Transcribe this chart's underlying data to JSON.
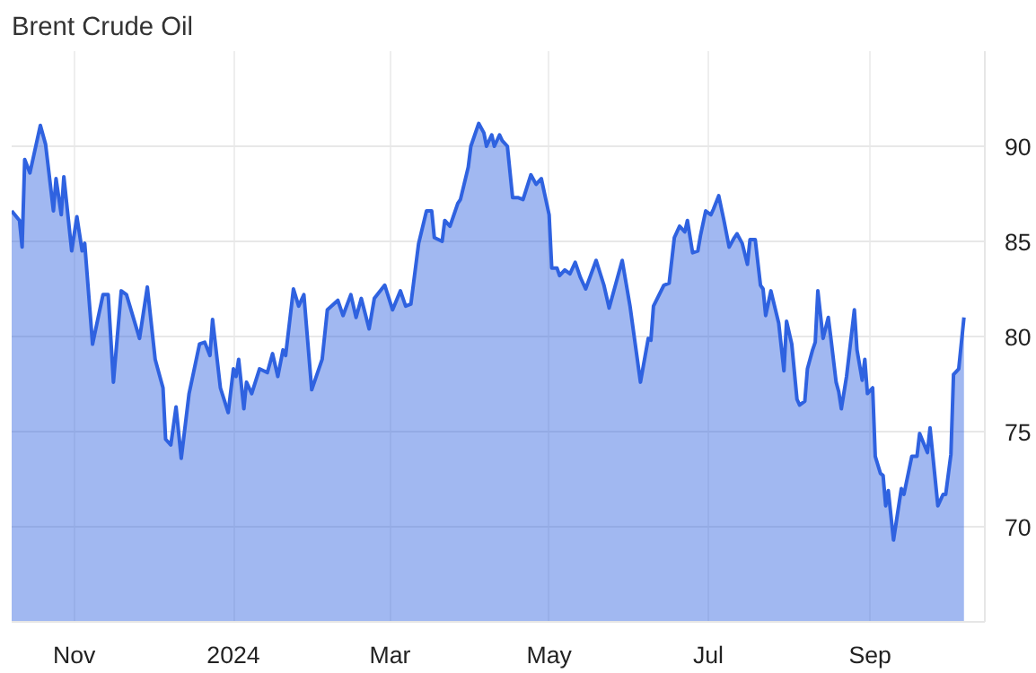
{
  "chart_data": {
    "type": "area",
    "title": "Brent Crude Oil",
    "x": [
      "2023-10-08",
      "2023-10-11",
      "2023-10-12",
      "2023-10-13",
      "2023-10-15",
      "2023-10-19",
      "2023-10-21",
      "2023-10-24",
      "2023-10-25",
      "2023-10-27",
      "2023-10-28",
      "2023-10-31",
      "2023-11-02",
      "2023-11-04",
      "2023-11-05",
      "2023-11-08",
      "2023-11-12",
      "2023-11-14",
      "2023-11-16",
      "2023-11-19",
      "2023-11-21",
      "2023-11-26",
      "2023-11-29",
      "2023-12-02",
      "2023-12-05",
      "2023-12-06",
      "2023-12-08",
      "2023-12-10",
      "2023-12-12",
      "2023-12-15",
      "2023-12-19",
      "2023-12-21",
      "2023-12-23",
      "2023-12-24",
      "2023-12-27",
      "2023-12-30",
      "2024-01-01",
      "2024-01-02",
      "2024-01-03",
      "2024-01-05",
      "2024-01-06",
      "2024-01-08",
      "2024-01-11",
      "2024-01-14",
      "2024-01-16",
      "2024-01-18",
      "2024-01-20",
      "2024-01-21",
      "2024-01-24",
      "2024-01-26",
      "2024-01-28",
      "2024-01-31",
      "2024-02-04",
      "2024-02-06",
      "2024-02-10",
      "2024-02-12",
      "2024-02-15",
      "2024-02-17",
      "2024-02-19",
      "2024-02-22",
      "2024-02-24",
      "2024-02-28",
      "2024-03-02",
      "2024-03-05",
      "2024-03-07",
      "2024-03-09",
      "2024-03-12",
      "2024-03-15",
      "2024-03-17",
      "2024-03-18",
      "2024-03-21",
      "2024-03-22",
      "2024-03-24",
      "2024-03-27",
      "2024-03-28",
      "2024-03-31",
      "2024-04-01",
      "2024-04-04",
      "2024-04-06",
      "2024-04-07",
      "2024-04-09",
      "2024-04-10",
      "2024-04-12",
      "2024-04-13",
      "2024-04-15",
      "2024-04-17",
      "2024-04-19",
      "2024-04-21",
      "2024-04-24",
      "2024-04-26",
      "2024-04-28",
      "2024-05-01",
      "2024-05-02",
      "2024-05-04",
      "2024-05-05",
      "2024-05-07",
      "2024-05-09",
      "2024-05-11",
      "2024-05-13",
      "2024-05-15",
      "2024-05-19",
      "2024-05-22",
      "2024-05-24",
      "2024-05-29",
      "2024-06-01",
      "2024-06-05",
      "2024-06-08",
      "2024-06-09",
      "2024-06-10",
      "2024-06-14",
      "2024-06-16",
      "2024-06-18",
      "2024-06-20",
      "2024-06-22",
      "2024-06-23",
      "2024-06-25",
      "2024-06-27",
      "2024-06-28",
      "2024-06-30",
      "2024-07-02",
      "2024-07-03",
      "2024-07-05",
      "2024-07-07",
      "2024-07-09",
      "2024-07-11",
      "2024-07-12",
      "2024-07-14",
      "2024-07-16",
      "2024-07-17",
      "2024-07-19",
      "2024-07-21",
      "2024-07-22",
      "2024-07-23",
      "2024-07-25",
      "2024-07-28",
      "2024-07-30",
      "2024-07-31",
      "2024-08-02",
      "2024-08-04",
      "2024-08-05",
      "2024-08-07",
      "2024-08-08",
      "2024-08-10",
      "2024-08-11",
      "2024-08-12",
      "2024-08-14",
      "2024-08-16",
      "2024-08-17",
      "2024-08-19",
      "2024-08-20",
      "2024-08-21",
      "2024-08-23",
      "2024-08-26",
      "2024-08-27",
      "2024-08-29",
      "2024-08-30",
      "2024-08-31",
      "2024-09-02",
      "2024-09-03",
      "2024-09-05",
      "2024-09-06",
      "2024-09-07",
      "2024-09-08",
      "2024-09-10",
      "2024-09-13",
      "2024-09-14",
      "2024-09-17",
      "2024-09-19",
      "2024-09-20",
      "2024-09-23",
      "2024-09-24",
      "2024-09-27",
      "2024-09-29",
      "2024-09-30",
      "2024-10-02",
      "2024-10-03",
      "2024-10-05",
      "2024-10-07"
    ],
    "series": [
      {
        "color": "#2f62e0",
        "values": [
          86.6,
          86.1,
          84.7,
          89.3,
          88.6,
          91.1,
          90.1,
          86.6,
          88.3,
          86.4,
          88.4,
          84.5,
          86.3,
          84.5,
          84.9,
          79.6,
          82.2,
          82.2,
          77.6,
          82.4,
          82.2,
          79.9,
          82.6,
          78.8,
          77.3,
          74.6,
          74.3,
          76.3,
          73.6,
          77.0,
          79.6,
          79.7,
          79.0,
          80.9,
          77.3,
          76.0,
          78.3,
          77.9,
          78.8,
          76.2,
          77.6,
          77.0,
          78.3,
          78.1,
          79.1,
          77.9,
          79.3,
          79.0,
          82.5,
          81.6,
          82.2,
          77.2,
          78.8,
          81.4,
          81.9,
          81.1,
          82.2,
          81.0,
          82.0,
          80.4,
          82.0,
          82.7,
          81.4,
          82.4,
          81.6,
          81.7,
          84.9,
          86.6,
          86.6,
          85.2,
          85.0,
          86.1,
          85.8,
          87.0,
          87.2,
          88.9,
          90.0,
          91.2,
          90.7,
          90.0,
          90.6,
          90.0,
          90.6,
          90.3,
          90.0,
          87.3,
          87.3,
          87.2,
          88.5,
          88.0,
          88.3,
          86.4,
          83.6,
          83.6,
          83.2,
          83.5,
          83.3,
          83.9,
          83.1,
          82.5,
          84.0,
          82.7,
          81.5,
          84.0,
          81.6,
          77.6,
          79.9,
          79.8,
          81.6,
          82.7,
          82.8,
          85.2,
          85.8,
          85.5,
          86.1,
          84.4,
          84.5,
          85.3,
          86.6,
          86.4,
          86.7,
          87.4,
          86.1,
          84.7,
          85.2,
          85.4,
          84.9,
          83.8,
          85.1,
          85.1,
          82.7,
          82.5,
          81.1,
          82.4,
          80.7,
          78.2,
          80.8,
          79.6,
          76.7,
          76.4,
          76.6,
          78.3,
          79.3,
          79.7,
          82.4,
          79.9,
          81.0,
          79.9,
          77.6,
          77.1,
          76.2,
          77.9,
          81.4,
          79.3,
          77.7,
          78.8,
          77.0,
          77.3,
          73.7,
          72.8,
          72.7,
          71.1,
          71.9,
          69.3,
          72.0,
          71.7,
          73.7,
          73.7,
          74.9,
          73.9,
          75.2,
          71.1,
          71.7,
          71.7,
          73.8,
          78.0,
          78.3,
          81.0
        ]
      }
    ],
    "xlim": [
      "2023-10-08",
      "2024-10-15"
    ],
    "xticks": [
      {
        "value": "2023-11-01",
        "label": "Nov"
      },
      {
        "value": "2024-01-01",
        "label": "2024"
      },
      {
        "value": "2024-03-01",
        "label": "Mar"
      },
      {
        "value": "2024-05-01",
        "label": "May"
      },
      {
        "value": "2024-07-01",
        "label": "Jul"
      },
      {
        "value": "2024-09-01",
        "label": "Sep"
      }
    ],
    "ylim": [
      65,
      95
    ],
    "yticks": [
      70,
      75,
      80,
      85,
      90
    ],
    "grid": true
  }
}
